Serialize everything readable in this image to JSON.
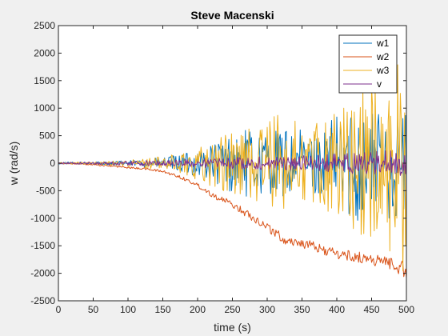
{
  "chart_data": {
    "type": "line",
    "title": "Steve Macenski",
    "xlabel": "time (s)",
    "ylabel": "w (rad/s)",
    "xlim": [
      0,
      500
    ],
    "ylim": [
      -2500,
      2500
    ],
    "xticks": [
      0,
      50,
      100,
      150,
      200,
      250,
      300,
      350,
      400,
      450,
      500
    ],
    "yticks": [
      -2500,
      -2000,
      -1500,
      -1000,
      -500,
      0,
      500,
      1000,
      1500,
      2000,
      2500
    ],
    "xtick_labels": [
      "0",
      "50",
      "100",
      "150",
      "200",
      "250",
      "300",
      "350",
      "400",
      "450",
      "500"
    ],
    "ytick_labels": [
      "-2500",
      "-2000",
      "-1500",
      "-1000",
      "-500",
      "0",
      "500",
      "1000",
      "1500",
      "2000",
      "2500"
    ],
    "grid": false,
    "legend_position": "top-right",
    "series": [
      {
        "name": "w1",
        "color": "#0072bd",
        "x": [
          0,
          25,
          50,
          75,
          100,
          125,
          150,
          175,
          200,
          225,
          250,
          275,
          300,
          325,
          350,
          375,
          400,
          425,
          450,
          475,
          500
        ],
        "center": [
          0,
          0,
          0,
          0,
          0,
          0,
          0,
          0,
          0,
          0,
          0,
          0,
          0,
          0,
          0,
          0,
          0,
          0,
          0,
          0,
          0
        ],
        "amplitude": [
          20,
          20,
          25,
          35,
          50,
          70,
          110,
          160,
          250,
          380,
          550,
          620,
          580,
          650,
          600,
          550,
          900,
          1100,
          1000,
          1000,
          1000
        ]
      },
      {
        "name": "w2",
        "color": "#d95319",
        "x": [
          0,
          25,
          50,
          75,
          100,
          125,
          150,
          175,
          200,
          225,
          250,
          275,
          300,
          325,
          350,
          375,
          400,
          425,
          450,
          475,
          500
        ],
        "center": [
          0,
          -10,
          -30,
          -50,
          -80,
          -100,
          -150,
          -250,
          -400,
          -600,
          -750,
          -950,
          -1150,
          -1400,
          -1450,
          -1550,
          -1650,
          -1700,
          -1750,
          -1800,
          -1950
        ],
        "amplitude": [
          10,
          10,
          12,
          15,
          15,
          20,
          25,
          30,
          40,
          50,
          60,
          70,
          80,
          90,
          90,
          90,
          100,
          100,
          110,
          110,
          150
        ]
      },
      {
        "name": "w3",
        "color": "#edb120",
        "x": [
          0,
          25,
          50,
          75,
          100,
          125,
          150,
          175,
          200,
          225,
          250,
          275,
          300,
          325,
          350,
          375,
          400,
          425,
          450,
          475,
          500
        ],
        "center": [
          0,
          0,
          0,
          0,
          0,
          0,
          0,
          0,
          0,
          0,
          0,
          0,
          0,
          0,
          0,
          0,
          0,
          0,
          0,
          0,
          0
        ],
        "amplitude": [
          15,
          20,
          25,
          40,
          60,
          90,
          130,
          200,
          300,
          450,
          600,
          700,
          900,
          850,
          750,
          800,
          1100,
          1300,
          1500,
          1700,
          2100
        ]
      },
      {
        "name": "v",
        "color": "#7e2f8e",
        "x": [
          0,
          25,
          50,
          75,
          100,
          125,
          150,
          175,
          200,
          225,
          250,
          275,
          300,
          325,
          350,
          375,
          400,
          425,
          450,
          475,
          500
        ],
        "center": [
          0,
          0,
          0,
          0,
          0,
          0,
          0,
          0,
          0,
          0,
          0,
          0,
          0,
          0,
          0,
          0,
          0,
          0,
          0,
          0,
          0
        ],
        "amplitude": [
          15,
          20,
          25,
          30,
          40,
          50,
          60,
          70,
          80,
          90,
          100,
          110,
          120,
          130,
          140,
          150,
          170,
          190,
          210,
          230,
          250
        ]
      }
    ]
  }
}
